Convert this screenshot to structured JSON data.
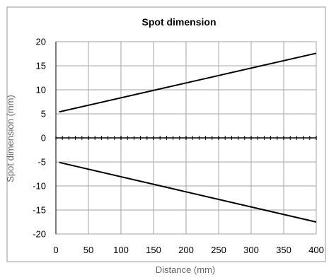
{
  "chart_data": {
    "type": "line",
    "title": "Spot dimension",
    "xlabel": "Distance (mm)",
    "ylabel": "Spot dimension (mm)",
    "xlim": [
      0,
      400
    ],
    "ylim": [
      -20,
      20
    ],
    "x_ticks": [
      0,
      50,
      100,
      150,
      200,
      250,
      300,
      350,
      400
    ],
    "y_ticks": [
      20,
      15,
      10,
      5,
      0,
      -5,
      -10,
      -15,
      -20
    ],
    "grid": true,
    "series": [
      {
        "x": [
          5,
          400
        ],
        "y": [
          5.4,
          17.6
        ],
        "color": "#000000"
      },
      {
        "x": [
          5,
          400
        ],
        "y": [
          -5.1,
          -17.5
        ],
        "color": "#000000"
      }
    ]
  },
  "colors": {
    "grid": "#a6a6a6",
    "axis": "#000000",
    "frame": "#9a9a9a"
  }
}
